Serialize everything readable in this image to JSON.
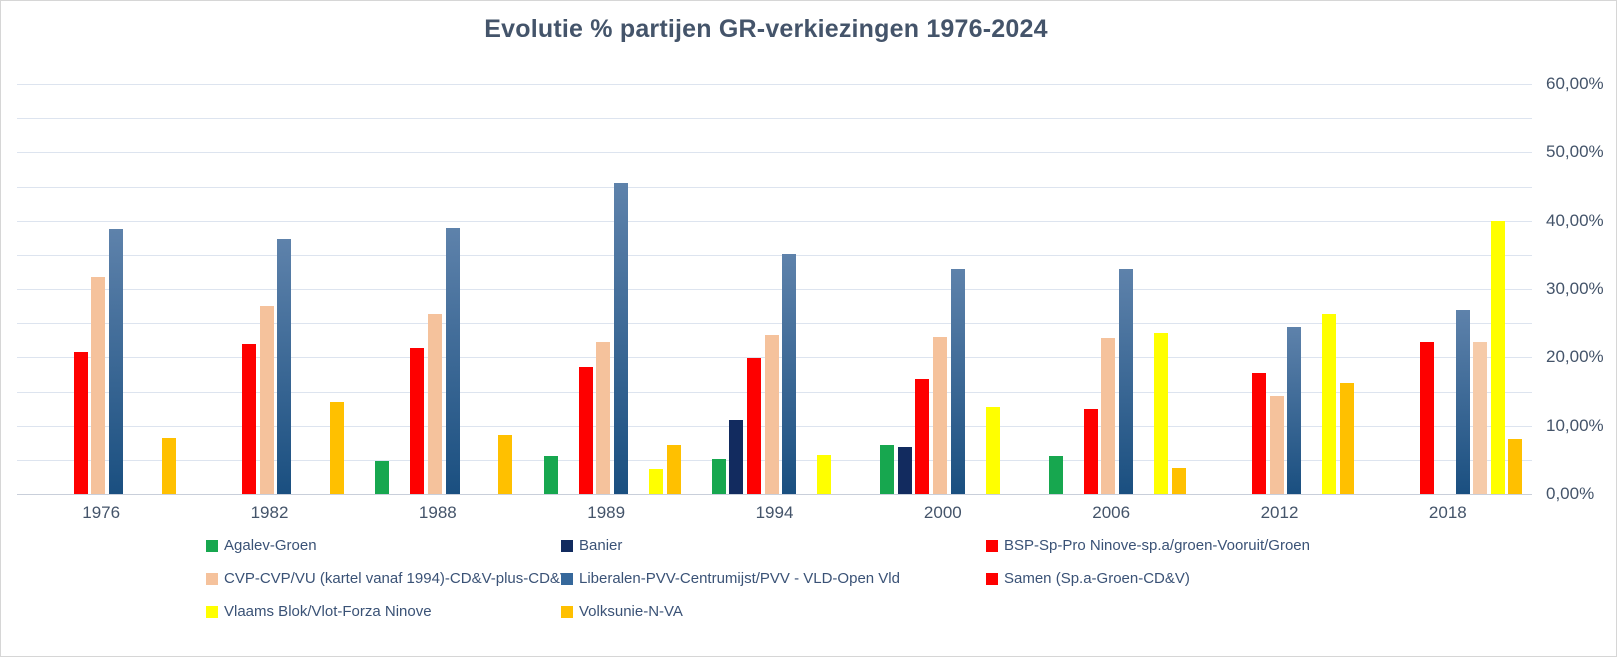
{
  "chart_data": {
    "type": "bar",
    "title": "Evolutie % partijen GR-verkiezingen 1976-2024",
    "categories": [
      "1976",
      "1982",
      "1988",
      "1989",
      "1994",
      "2000",
      "2006",
      "2012",
      "2018"
    ],
    "series": [
      {
        "name": "Agalev-Groen",
        "legend_color": "#17A74F",
        "values": [
          0,
          0,
          4.9,
          5.5,
          5.1,
          7.1,
          5.6,
          0,
          0
        ]
      },
      {
        "name": "Banier",
        "legend_color": "#122B5F",
        "values": [
          0,
          0,
          0,
          0,
          10.8,
          6.9,
          0,
          0,
          0
        ]
      },
      {
        "name": "BSP-Sp-Pro Ninove-sp.a/groen-Vooruit/Groen",
        "legend_color": "#FE0000",
        "values": [
          20.8,
          21.9,
          21.3,
          18.6,
          19.9,
          16.8,
          12.4,
          17.7,
          22.3
        ]
      },
      {
        "name": "CVP-CVP/VU (kartel vanaf 1994)-CD&V-plus-CD&V",
        "legend_color": "#F5C29C",
        "values": [
          31.8,
          27.5,
          26.4,
          22.2,
          23.2,
          23.0,
          22.9,
          14.4,
          0
        ]
      },
      {
        "name": "Liberalen-PVV-Centrumijst/PVV - VLD-Open Vld",
        "legend_color": "#36689B",
        "bar_gradient_top": "#5E82AB",
        "bar_gradient_bottom": "#1A4F80",
        "values": [
          38.8,
          37.3,
          38.9,
          45.5,
          35.1,
          33.0,
          33.0,
          24.4,
          27.0
        ]
      },
      {
        "name": "Samen (Sp.a-Groen-CD&V)",
        "legend_color": "#FE0000",
        "bar_color": "#F6CBA9",
        "values": [
          0,
          0,
          0,
          0,
          0,
          0,
          0,
          0,
          22.2
        ]
      },
      {
        "name": "Vlaams Blok/Vlot-Forza Ninove",
        "legend_color": "#FFFF00",
        "values": [
          0,
          0,
          0,
          3.7,
          5.7,
          12.7,
          23.5,
          26.4,
          40.0
        ]
      },
      {
        "name": "Volksunie-N-VA",
        "legend_color": "#FFC000",
        "values": [
          8.2,
          13.5,
          8.6,
          7.2,
          0,
          0,
          3.8,
          16.2,
          8.0
        ]
      }
    ],
    "y_axis": {
      "min": 0,
      "max": 60,
      "gridline_step": 5,
      "tick_step": 10,
      "side": "right",
      "tick_labels": [
        "0,00%",
        "10,00%",
        "20,00%",
        "30,00%",
        "40,00%",
        "50,00%",
        "60,00%"
      ]
    },
    "xlabel": "",
    "ylabel": "",
    "grid": true,
    "legend_position": "bottom"
  }
}
